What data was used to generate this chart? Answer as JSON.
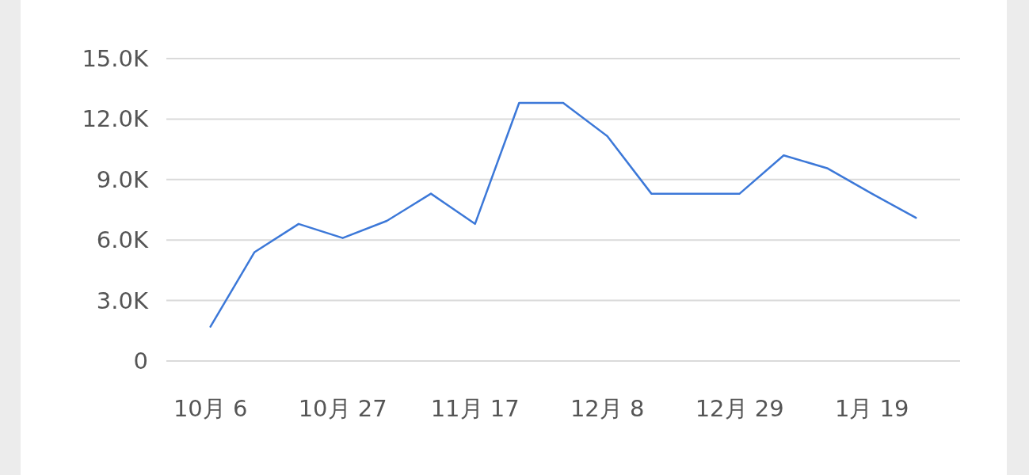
{
  "chart_data": {
    "type": "line",
    "categories": [
      "10月 6",
      null,
      null,
      "10月 27",
      null,
      null,
      "11月 17",
      null,
      null,
      "12月 8",
      null,
      null,
      "12月 29",
      null,
      null,
      "1月 19",
      null
    ],
    "series": [
      {
        "color": "#3c78d8",
        "values": [
          1700,
          5400,
          6800,
          6100,
          6950,
          8300,
          6800,
          12800,
          12800,
          11150,
          8300,
          8300,
          8300,
          10200,
          9550,
          8300,
          7100
        ]
      }
    ],
    "ylim": [
      0,
      15000
    ],
    "yticks": [
      0,
      {
        "value": 3000,
        "label": "3.0K"
      },
      {
        "value": 6000,
        "label": "6.0K"
      },
      {
        "value": 9000,
        "label": "9.0K"
      },
      {
        "value": 12000,
        "label": "12.0K"
      },
      {
        "value": 15000,
        "label": "15.0K"
      }
    ],
    "grid": "y",
    "marker": "none",
    "line_style": "solid"
  }
}
